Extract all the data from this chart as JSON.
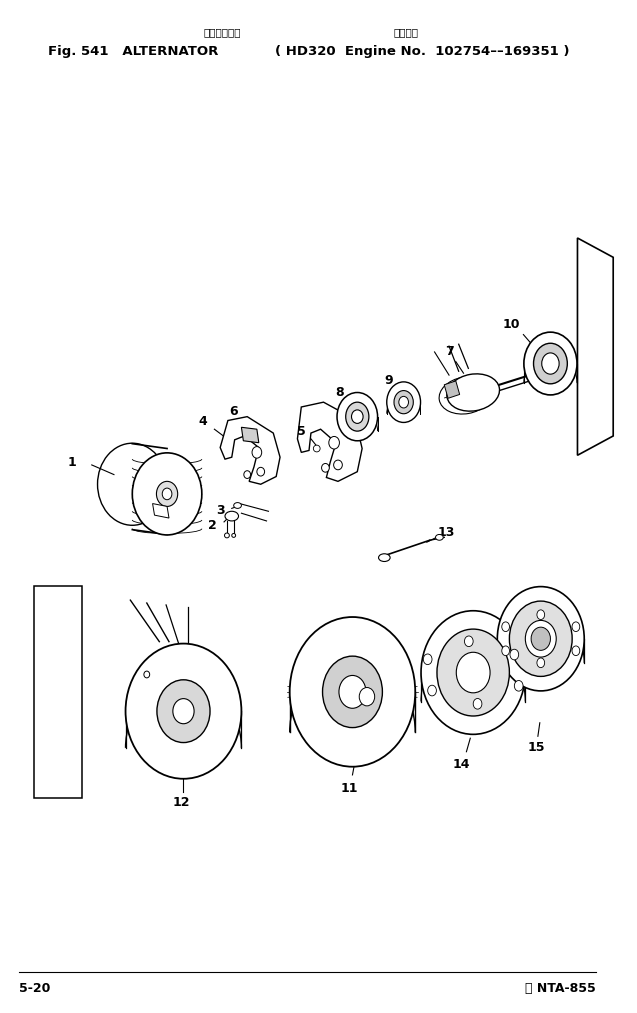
{
  "title_jp1": "オルタネータ",
  "title_jp2": "適用号機",
  "title_main": "Fig. 541   ALTERNATOR",
  "title_engine": "( HD320  Engine No.  102754––169351 )",
  "footer_left": "5-20",
  "footer_right": "Ⓢ NTA-855",
  "bg_color": "#ffffff",
  "lc": "#000000",
  "tc": "#000000"
}
